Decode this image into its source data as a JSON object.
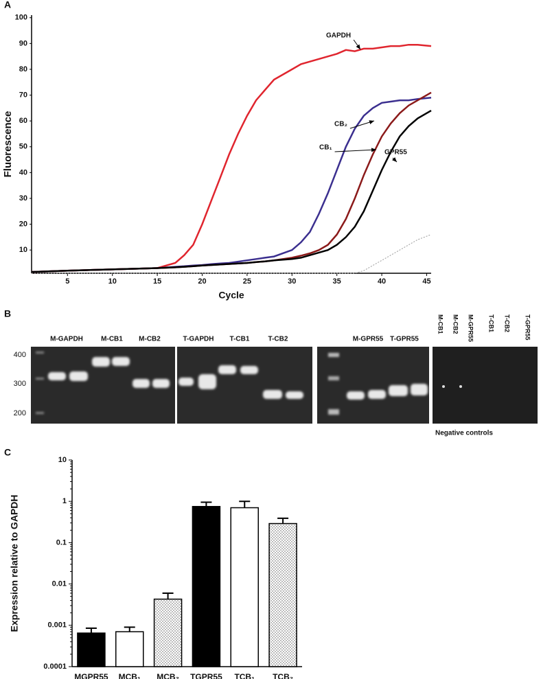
{
  "chart_data": [
    {
      "type": "line",
      "panel": "A",
      "xlabel": "Cycle",
      "ylabel": "Fluorescence",
      "xlim": [
        1,
        45.5
      ],
      "ylim": [
        1,
        101
      ],
      "xticks": [
        5,
        10,
        15,
        20,
        25,
        30,
        35,
        40,
        45
      ],
      "yticks": [
        10,
        20,
        30,
        40,
        50,
        60,
        70,
        80,
        90,
        100
      ],
      "x": [
        1,
        5,
        10,
        15,
        17,
        18,
        19,
        20,
        21,
        22,
        23,
        24,
        25,
        26,
        27,
        28,
        30,
        31,
        32,
        33,
        34,
        35,
        36,
        37,
        38,
        39,
        40,
        41,
        42,
        43,
        44,
        45.5
      ],
      "series": [
        {
          "name": "GAPDH",
          "color": "#e0252e",
          "values": [
            1.5,
            2,
            2.5,
            3,
            5,
            8,
            12,
            20,
            29,
            38,
            47,
            55,
            62,
            68,
            72,
            76,
            80,
            82,
            83,
            84,
            85,
            86,
            87.5,
            87,
            88,
            88,
            88.5,
            89,
            89,
            89.5,
            89.5,
            89
          ]
        },
        {
          "name": "CB₂",
          "color": "#3b2f8f",
          "values": [
            1.5,
            2,
            2.5,
            3,
            3.5,
            3.7,
            4,
            4.2,
            4.5,
            4.8,
            5,
            5.5,
            6,
            6.5,
            7,
            7.5,
            10,
            13,
            17,
            24,
            32,
            41,
            50,
            57,
            62,
            65,
            67,
            67.5,
            68,
            68,
            68.5,
            69
          ]
        },
        {
          "name": "CB₁",
          "color": "#8b1a1a",
          "values": [
            1.5,
            2,
            2.5,
            3,
            3.3,
            3.5,
            3.7,
            4,
            4.2,
            4.4,
            4.6,
            4.8,
            5,
            5.3,
            5.6,
            6,
            7,
            7.8,
            8.7,
            10,
            12,
            16,
            22,
            30,
            39,
            47,
            54,
            59,
            63,
            66,
            68,
            71
          ]
        },
        {
          "name": "GPR55",
          "color": "#000000",
          "values": [
            1.5,
            2,
            2.5,
            3,
            3.3,
            3.5,
            3.7,
            4,
            4.2,
            4.4,
            4.6,
            4.8,
            5,
            5.3,
            5.6,
            6,
            6.5,
            7,
            8,
            9,
            10,
            12,
            15,
            19,
            25,
            33,
            41,
            48,
            54,
            58,
            61,
            64
          ]
        },
        {
          "color": "#999999",
          "dotted": true,
          "values": [
            1,
            1,
            1,
            1,
            1,
            1,
            1,
            1,
            1,
            1,
            1,
            1,
            1,
            1,
            1,
            1,
            1,
            1,
            1,
            1,
            1,
            1,
            1,
            1,
            2,
            4,
            6,
            8,
            10,
            12,
            14,
            16
          ]
        }
      ]
    },
    {
      "type": "bar",
      "panel": "C",
      "ylabel": "Expression relative to GAPDH",
      "log_scale": true,
      "ylim": [
        0.0001,
        10
      ],
      "yticks": [
        0.0001,
        0.001,
        0.01,
        0.1,
        1,
        10
      ],
      "categories": [
        "MGPR55",
        "MCB₁",
        "MCB₂",
        "TGPR55",
        "TCB₁",
        "TCB₂"
      ],
      "values": [
        0.00065,
        0.0007,
        0.0043,
        0.75,
        0.7,
        0.29
      ],
      "errors": [
        0.0002,
        0.0002,
        0.0017,
        0.2,
        0.3,
        0.1
      ],
      "fills": [
        "solid",
        "hollow",
        "dots",
        "solid",
        "hollow",
        "dots"
      ]
    }
  ],
  "gel": {
    "panel": "B",
    "size_markers": [
      "400",
      "300",
      "200"
    ],
    "lanes": [
      "M-GAPDH",
      "M-CB1",
      "M-CB2",
      "T-GAPDH",
      "T-CB1",
      "T-CB2",
      "M-GPR55",
      "T-GPR55"
    ],
    "negative_lanes": [
      "M-CB1",
      "M-CB2",
      "M-GPR55",
      "T-CB1",
      "T-CB2",
      "T-GPR55"
    ],
    "negative_caption": "Negative controls"
  }
}
